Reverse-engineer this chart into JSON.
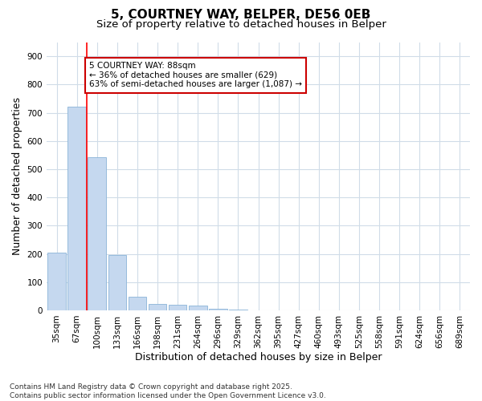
{
  "title_line1": "5, COURTNEY WAY, BELPER, DE56 0EB",
  "title_line2": "Size of property relative to detached houses in Belper",
  "xlabel": "Distribution of detached houses by size in Belper",
  "ylabel": "Number of detached properties",
  "categories": [
    "35sqm",
    "67sqm",
    "100sqm",
    "133sqm",
    "166sqm",
    "198sqm",
    "231sqm",
    "264sqm",
    "296sqm",
    "329sqm",
    "362sqm",
    "395sqm",
    "427sqm",
    "460sqm",
    "493sqm",
    "525sqm",
    "558sqm",
    "591sqm",
    "624sqm",
    "656sqm",
    "689sqm"
  ],
  "values": [
    205,
    720,
    543,
    197,
    47,
    22,
    20,
    16,
    5,
    3,
    0,
    0,
    0,
    0,
    0,
    0,
    0,
    0,
    0,
    0,
    0
  ],
  "bar_color": "#c5d8ef",
  "bar_edge_color": "#8ab4d8",
  "bg_color": "#ffffff",
  "plot_bg_color": "#ffffff",
  "grid_color": "#d0dce8",
  "red_line_x": 1.5,
  "annotation_text": "5 COURTNEY WAY: 88sqm\n← 36% of detached houses are smaller (629)\n63% of semi-detached houses are larger (1,087) →",
  "annotation_box_facecolor": "#ffffff",
  "annotation_box_edgecolor": "#cc0000",
  "ylim": [
    0,
    950
  ],
  "yticks": [
    0,
    100,
    200,
    300,
    400,
    500,
    600,
    700,
    800,
    900
  ],
  "footer": "Contains HM Land Registry data © Crown copyright and database right 2025.\nContains public sector information licensed under the Open Government Licence v3.0.",
  "title_fontsize": 11,
  "subtitle_fontsize": 9.5,
  "axis_label_fontsize": 9,
  "tick_fontsize": 7.5,
  "annotation_fontsize": 7.5,
  "footer_fontsize": 6.5
}
